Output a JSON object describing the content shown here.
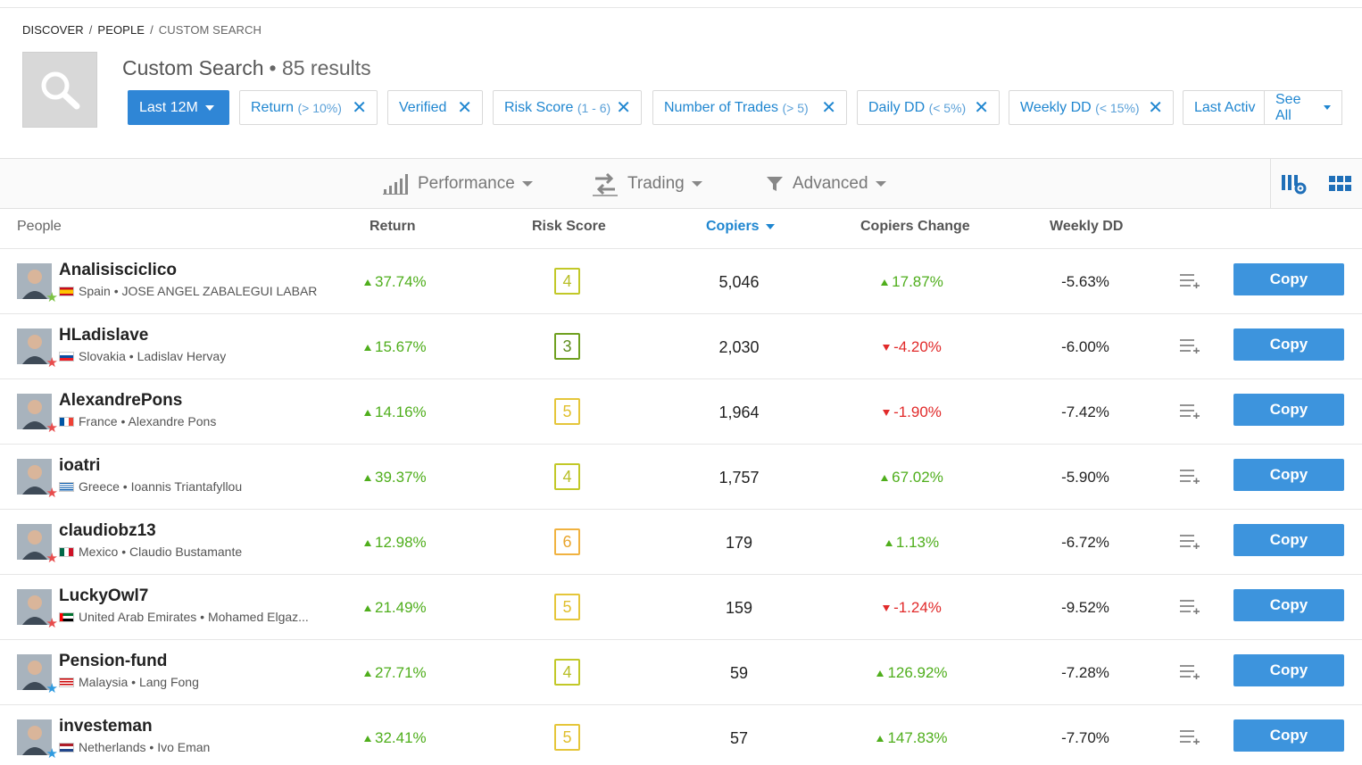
{
  "breadcrumb": {
    "discover": "DISCOVER",
    "people": "PEOPLE",
    "current": "CUSTOM SEARCH",
    "separator": "/"
  },
  "header": {
    "title": "Custom Search",
    "count": "• 85 results"
  },
  "filters": {
    "period": "Last 12M",
    "chips": [
      {
        "label": "Return",
        "range": "(> 10%)"
      },
      {
        "label": "Verified",
        "range": ""
      },
      {
        "label": "Risk Score",
        "range": "(1 - 6)"
      },
      {
        "label": "Number of Trades",
        "range": "(> 5)"
      },
      {
        "label": "Daily DD",
        "range": "(< 5%)"
      },
      {
        "label": "Weekly DD",
        "range": "(< 15%)"
      },
      {
        "label": "Last Activ",
        "range": ""
      }
    ],
    "see_all": "See All"
  },
  "toolbar": {
    "performance": "Performance",
    "trading": "Trading",
    "advanced": "Advanced"
  },
  "columns": {
    "people": "People",
    "return": "Return",
    "risk": "Risk Score",
    "copiers": "Copiers",
    "copiers_change": "Copiers Change",
    "weekly_dd": "Weekly DD"
  },
  "colors": {
    "accent": "#2f86d6",
    "positive": "#4fae1c",
    "negative": "#e12a2a"
  },
  "rows": [
    {
      "username": "Analisisciclico",
      "country": "Spain",
      "name": "JOSE ANGEL ZABALEGUI LABAR...",
      "return": "37.74%",
      "risk": "4",
      "copiers": "5,046",
      "change": "17.87%",
      "change_dir": "up",
      "weekly_dd": "-5.63%",
      "copy": "Copy",
      "star": "green-star"
    },
    {
      "username": "HLadislave",
      "country": "Slovakia",
      "name": "Ladislav Hervay",
      "return": "15.67%",
      "risk": "3",
      "copiers": "2,030",
      "change": "-4.20%",
      "change_dir": "down",
      "weekly_dd": "-6.00%",
      "copy": "Copy",
      "star": "red-star"
    },
    {
      "username": "AlexandrePons",
      "country": "France",
      "name": "Alexandre Pons",
      "return": "14.16%",
      "risk": "5",
      "copiers": "1,964",
      "change": "-1.90%",
      "change_dir": "down",
      "weekly_dd": "-7.42%",
      "copy": "Copy",
      "star": "red-star"
    },
    {
      "username": "ioatri",
      "country": "Greece",
      "name": "Ioannis Triantafyllou",
      "return": "39.37%",
      "risk": "4",
      "copiers": "1,757",
      "change": "67.02%",
      "change_dir": "up",
      "weekly_dd": "-5.90%",
      "copy": "Copy",
      "star": "red-star"
    },
    {
      "username": "claudiobz13",
      "country": "Mexico",
      "name": "Claudio Bustamante",
      "return": "12.98%",
      "risk": "6",
      "copiers": "179",
      "change": "1.13%",
      "change_dir": "up",
      "weekly_dd": "-6.72%",
      "copy": "Copy",
      "star": "red-star"
    },
    {
      "username": "LuckyOwl7",
      "country": "United Arab Emirates",
      "name": "Mohamed Elgaz...",
      "return": "21.49%",
      "risk": "5",
      "copiers": "159",
      "change": "-1.24%",
      "change_dir": "down",
      "weekly_dd": "-9.52%",
      "copy": "Copy",
      "star": "red-star"
    },
    {
      "username": "Pension-fund",
      "country": "Malaysia",
      "name": "Lang Fong",
      "return": "27.71%",
      "risk": "4",
      "copiers": "59",
      "change": "126.92%",
      "change_dir": "up",
      "weekly_dd": "-7.28%",
      "copy": "Copy",
      "star": "blue-star"
    },
    {
      "username": "investeman",
      "country": "Netherlands",
      "name": "Ivo Eman",
      "return": "32.41%",
      "risk": "5",
      "copiers": "57",
      "change": "147.83%",
      "change_dir": "up",
      "weekly_dd": "-7.70%",
      "copy": "Copy",
      "star": "blue-star"
    }
  ]
}
